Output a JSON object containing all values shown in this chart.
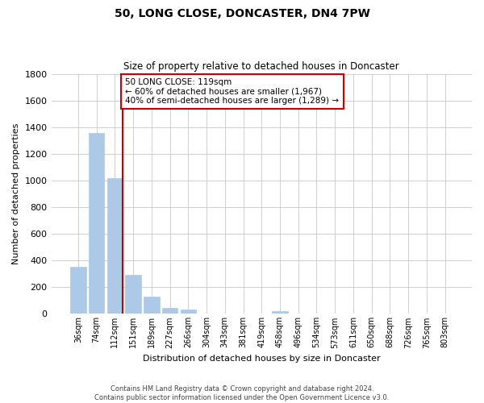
{
  "title": "50, LONG CLOSE, DONCASTER, DN4 7PW",
  "subtitle": "Size of property relative to detached houses in Doncaster",
  "xlabel": "Distribution of detached houses by size in Doncaster",
  "ylabel": "Number of detached properties",
  "categories": [
    "36sqm",
    "74sqm",
    "112sqm",
    "151sqm",
    "189sqm",
    "227sqm",
    "266sqm",
    "304sqm",
    "343sqm",
    "381sqm",
    "419sqm",
    "458sqm",
    "496sqm",
    "534sqm",
    "573sqm",
    "611sqm",
    "650sqm",
    "688sqm",
    "726sqm",
    "765sqm",
    "803sqm"
  ],
  "values": [
    355,
    1360,
    1020,
    290,
    130,
    45,
    35,
    0,
    0,
    0,
    0,
    20,
    0,
    0,
    0,
    0,
    0,
    0,
    0,
    0,
    0
  ],
  "bar_color": "#adc9e8",
  "bar_edgecolor": "#adc9e8",
  "grid_color": "#c8c8c8",
  "bg_color": "#ffffff",
  "ylim": [
    0,
    1800
  ],
  "yticks": [
    0,
    200,
    400,
    600,
    800,
    1000,
    1200,
    1400,
    1600,
    1800
  ],
  "property_line_color": "#cc0000",
  "annotation_text": "50 LONG CLOSE: 119sqm\n← 60% of detached houses are smaller (1,967)\n40% of semi-detached houses are larger (1,289) →",
  "annotation_box_edgecolor": "#cc0000",
  "footer_line1": "Contains HM Land Registry data © Crown copyright and database right 2024.",
  "footer_line2": "Contains public sector information licensed under the Open Government Licence v3.0."
}
